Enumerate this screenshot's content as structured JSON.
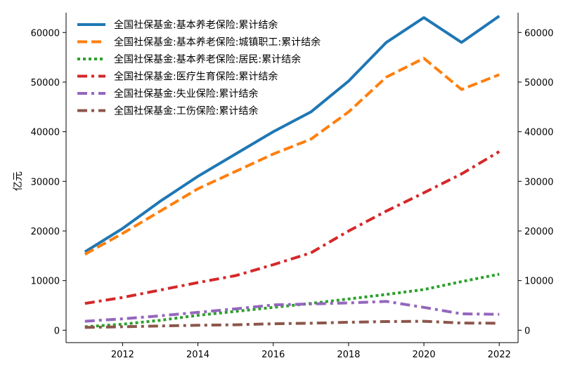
{
  "chart_data": {
    "type": "line",
    "x": [
      2011,
      2012,
      2013,
      2014,
      2015,
      2016,
      2017,
      2018,
      2019,
      2020,
      2021,
      2022
    ],
    "ylabel": "亿元",
    "xlim": [
      2010.5,
      2022.5
    ],
    "ylim": [
      -2500,
      64000
    ],
    "x_ticks": [
      2012,
      2014,
      2016,
      2018,
      2020,
      2022
    ],
    "y_ticks": [
      0,
      10000,
      20000,
      30000,
      40000,
      50000,
      60000
    ],
    "secondary_y_axis": true,
    "legend_position": "top-left",
    "grid": false,
    "series": [
      {
        "name": "全国社保基金:基本养老保险:累计结余",
        "color": "#1f77b4",
        "dash": "solid",
        "values": [
          15800,
          20500,
          26000,
          31000,
          35500,
          40000,
          44000,
          50200,
          58000,
          63000,
          58000,
          63300
        ]
      },
      {
        "name": "全国社保基金:基本养老保险:城镇职工:累计结余",
        "color": "#ff7f0e",
        "dash": "dashed",
        "values": [
          15300,
          19500,
          24000,
          28500,
          32000,
          35500,
          38500,
          44000,
          51000,
          54800,
          48500,
          51500
        ]
      },
      {
        "name": "全国社保基金:基本养老保险:居民:累计结余",
        "color": "#2ca02c",
        "dash": "dotted",
        "values": [
          700,
          1200,
          2000,
          3000,
          3800,
          4600,
          5400,
          6300,
          7200,
          8200,
          9800,
          11300
        ]
      },
      {
        "name": "全国社保基金:医疗生育保险:累计结余",
        "color": "#d62728",
        "dash": "dashdot",
        "values": [
          5400,
          6600,
          8100,
          9600,
          11000,
          13200,
          15600,
          20000,
          24000,
          27700,
          31500,
          36000
        ]
      },
      {
        "name": "全国社保基金:失业保险:累计结余",
        "color": "#9467bd",
        "dash": "dashdot",
        "values": [
          1800,
          2300,
          2900,
          3600,
          4300,
          5100,
          5300,
          5500,
          5800,
          4600,
          3300,
          3200
        ]
      },
      {
        "name": "全国社保基金:工伤保险:累计结余",
        "color": "#8c564b",
        "dash": "dashdot",
        "values": [
          550,
          700,
          850,
          1000,
          1100,
          1300,
          1400,
          1600,
          1750,
          1800,
          1450,
          1400
        ]
      }
    ]
  }
}
